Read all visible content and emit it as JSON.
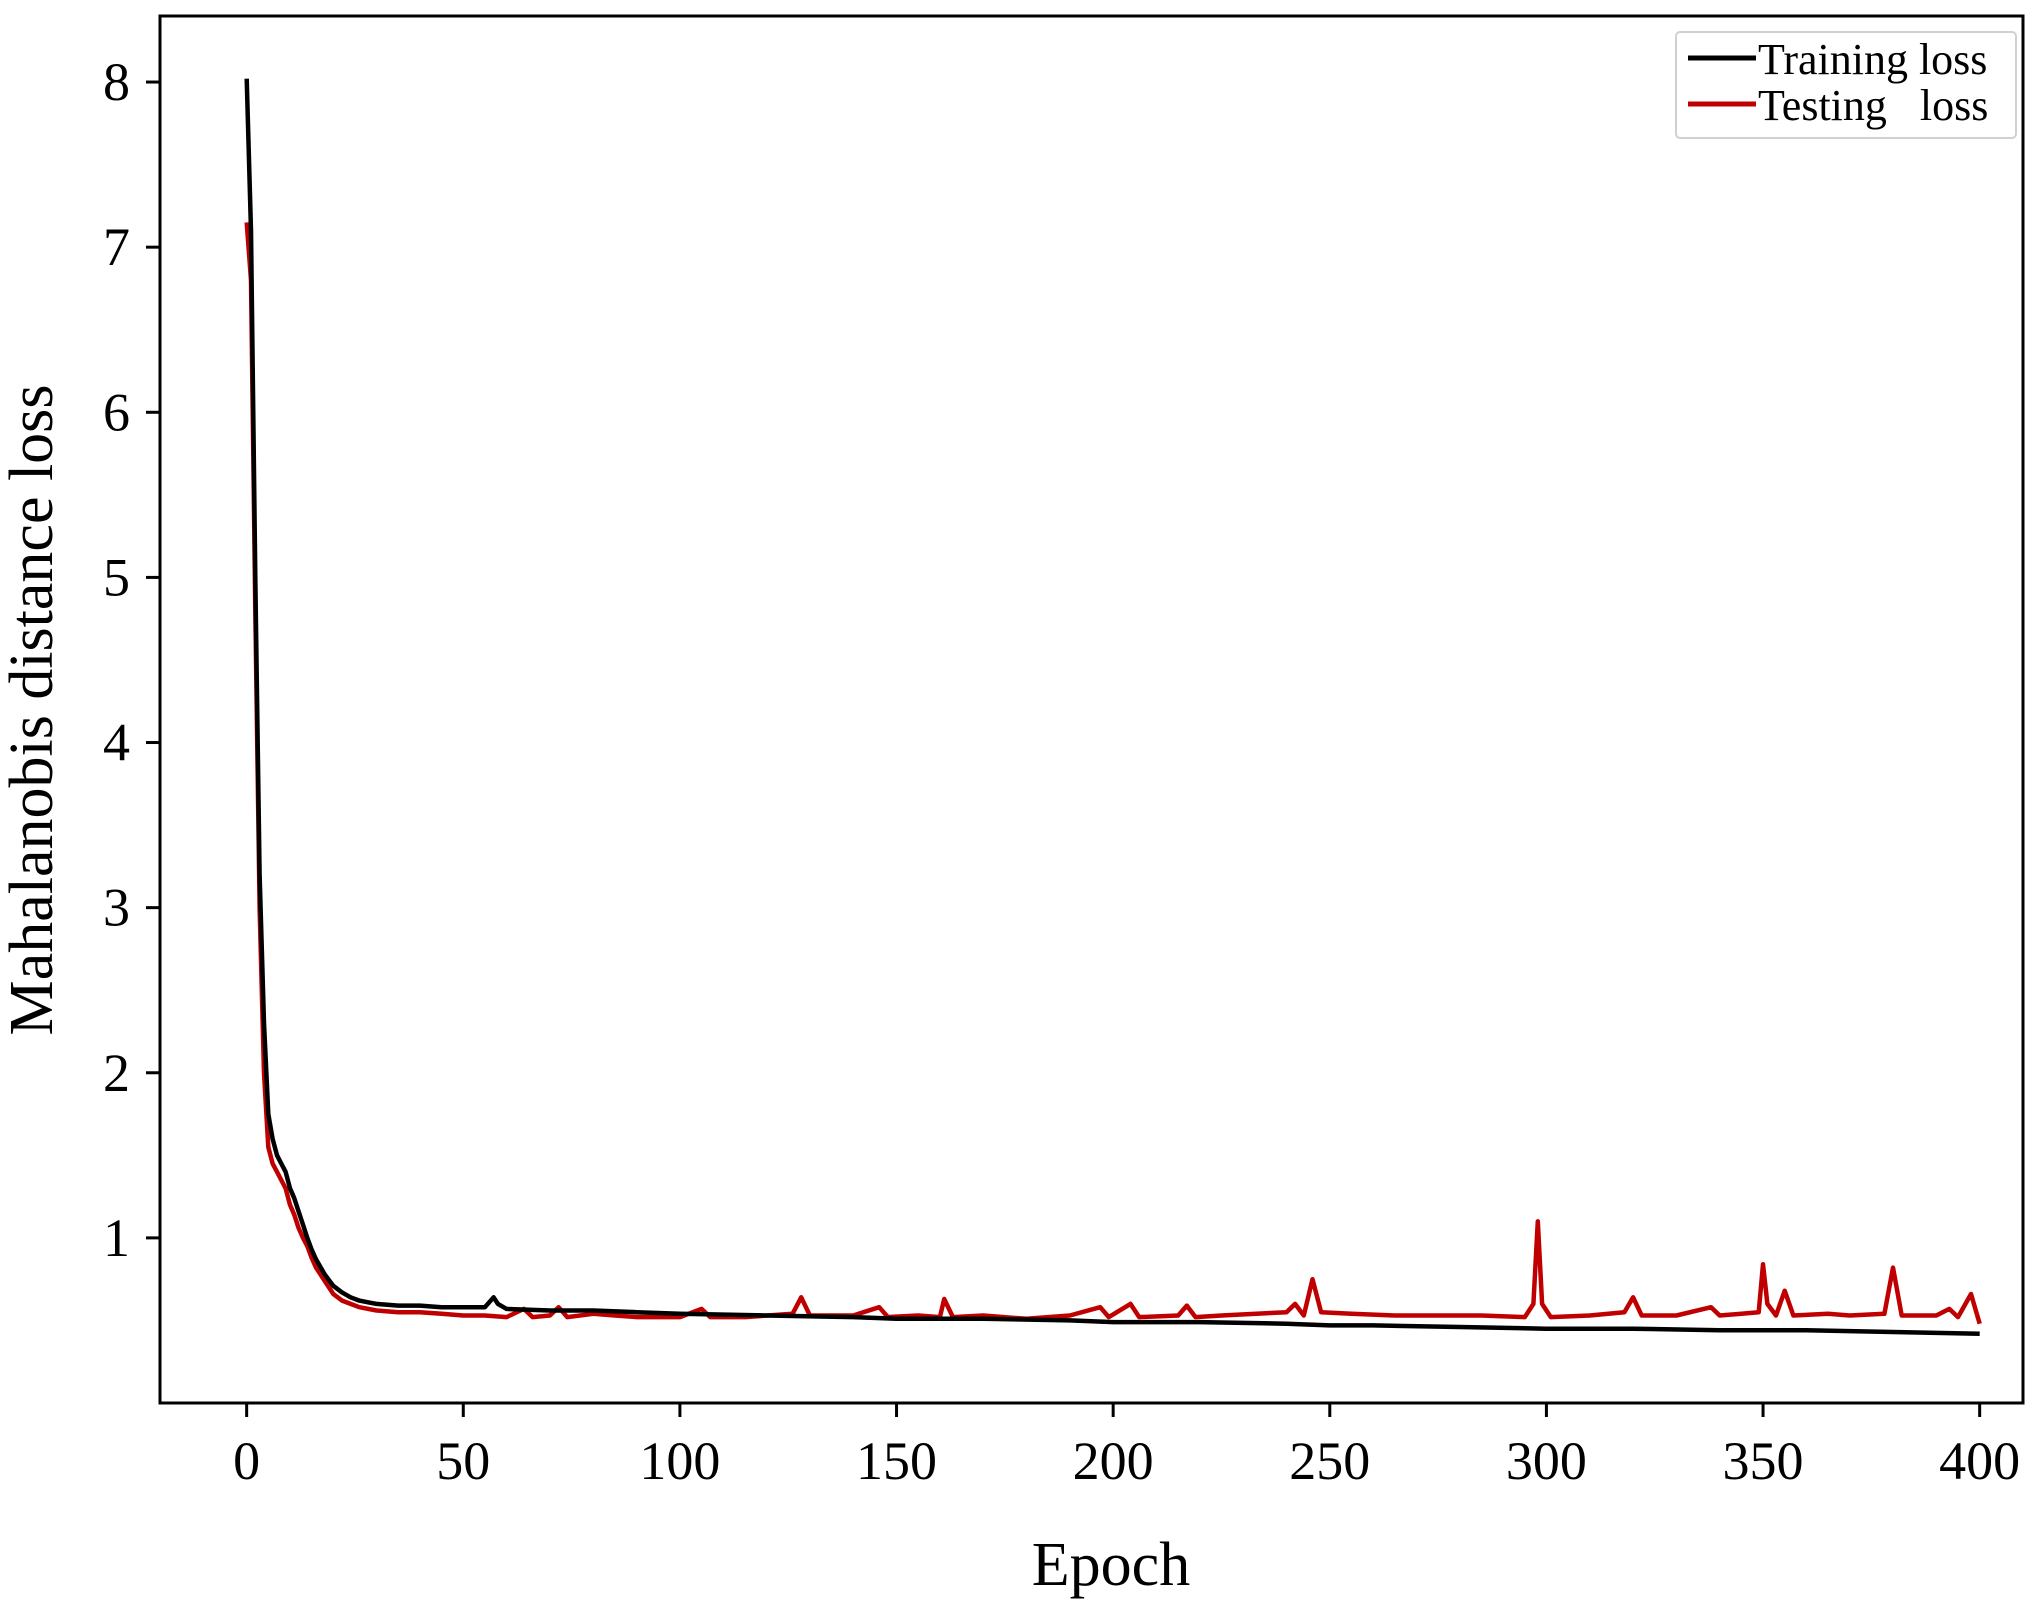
{
  "chart_data": {
    "type": "line",
    "title": "",
    "xlabel": "Epoch",
    "ylabel": "Mahalanobis distance loss",
    "xlim": [
      -20,
      410
    ],
    "ylim": [
      0.0,
      8.4
    ],
    "xticks": [
      0,
      50,
      100,
      150,
      200,
      250,
      300,
      350,
      400
    ],
    "yticks": [
      1,
      2,
      3,
      4,
      5,
      6,
      7,
      8
    ],
    "grid": false,
    "legend_position": "top-right",
    "series": [
      {
        "name": "Training loss",
        "color": "#000000",
        "points": [
          [
            0,
            8.02
          ],
          [
            1,
            7.1
          ],
          [
            2,
            5.0
          ],
          [
            3,
            3.2
          ],
          [
            4,
            2.3
          ],
          [
            5,
            1.75
          ],
          [
            6,
            1.6
          ],
          [
            7,
            1.5
          ],
          [
            8,
            1.45
          ],
          [
            9,
            1.4
          ],
          [
            10,
            1.3
          ],
          [
            11,
            1.24
          ],
          [
            12,
            1.16
          ],
          [
            13,
            1.08
          ],
          [
            14,
            1.0
          ],
          [
            15,
            0.93
          ],
          [
            16,
            0.87
          ],
          [
            18,
            0.78
          ],
          [
            20,
            0.71
          ],
          [
            22,
            0.67
          ],
          [
            24,
            0.64
          ],
          [
            26,
            0.62
          ],
          [
            28,
            0.61
          ],
          [
            30,
            0.6
          ],
          [
            35,
            0.59
          ],
          [
            40,
            0.59
          ],
          [
            45,
            0.58
          ],
          [
            50,
            0.58
          ],
          [
            55,
            0.58
          ],
          [
            57,
            0.64
          ],
          [
            58,
            0.6
          ],
          [
            60,
            0.57
          ],
          [
            70,
            0.56
          ],
          [
            80,
            0.56
          ],
          [
            90,
            0.55
          ],
          [
            100,
            0.54
          ],
          [
            120,
            0.53
          ],
          [
            140,
            0.52
          ],
          [
            150,
            0.51
          ],
          [
            170,
            0.51
          ],
          [
            190,
            0.5
          ],
          [
            200,
            0.49
          ],
          [
            220,
            0.49
          ],
          [
            240,
            0.48
          ],
          [
            250,
            0.47
          ],
          [
            260,
            0.47
          ],
          [
            280,
            0.46
          ],
          [
            300,
            0.45
          ],
          [
            320,
            0.45
          ],
          [
            340,
            0.44
          ],
          [
            360,
            0.44
          ],
          [
            380,
            0.43
          ],
          [
            400,
            0.42
          ]
        ]
      },
      {
        "name": "Testing   loss",
        "color": "#c00000",
        "points": [
          [
            0,
            7.15
          ],
          [
            1,
            6.8
          ],
          [
            2,
            4.8
          ],
          [
            3,
            3.0
          ],
          [
            4,
            2.0
          ],
          [
            5,
            1.55
          ],
          [
            6,
            1.45
          ],
          [
            7,
            1.4
          ],
          [
            8,
            1.35
          ],
          [
            9,
            1.3
          ],
          [
            10,
            1.2
          ],
          [
            11,
            1.14
          ],
          [
            12,
            1.06
          ],
          [
            13,
            1.0
          ],
          [
            14,
            0.95
          ],
          [
            15,
            0.88
          ],
          [
            16,
            0.82
          ],
          [
            18,
            0.74
          ],
          [
            20,
            0.66
          ],
          [
            22,
            0.62
          ],
          [
            24,
            0.6
          ],
          [
            26,
            0.58
          ],
          [
            30,
            0.56
          ],
          [
            35,
            0.55
          ],
          [
            40,
            0.55
          ],
          [
            45,
            0.54
          ],
          [
            50,
            0.53
          ],
          [
            55,
            0.53
          ],
          [
            60,
            0.52
          ],
          [
            64,
            0.57
          ],
          [
            66,
            0.52
          ],
          [
            70,
            0.53
          ],
          [
            72,
            0.58
          ],
          [
            74,
            0.52
          ],
          [
            80,
            0.54
          ],
          [
            85,
            0.53
          ],
          [
            90,
            0.52
          ],
          [
            100,
            0.52
          ],
          [
            105,
            0.57
          ],
          [
            107,
            0.52
          ],
          [
            115,
            0.52
          ],
          [
            126,
            0.54
          ],
          [
            128,
            0.64
          ],
          [
            130,
            0.53
          ],
          [
            140,
            0.53
          ],
          [
            146,
            0.58
          ],
          [
            148,
            0.52
          ],
          [
            155,
            0.53
          ],
          [
            160,
            0.52
          ],
          [
            161,
            0.63
          ],
          [
            163,
            0.52
          ],
          [
            170,
            0.53
          ],
          [
            180,
            0.51
          ],
          [
            190,
            0.53
          ],
          [
            197,
            0.58
          ],
          [
            199,
            0.52
          ],
          [
            204,
            0.6
          ],
          [
            206,
            0.52
          ],
          [
            215,
            0.53
          ],
          [
            217,
            0.59
          ],
          [
            219,
            0.52
          ],
          [
            225,
            0.53
          ],
          [
            240,
            0.55
          ],
          [
            242,
            0.6
          ],
          [
            244,
            0.53
          ],
          [
            246,
            0.75
          ],
          [
            248,
            0.55
          ],
          [
            255,
            0.54
          ],
          [
            265,
            0.53
          ],
          [
            275,
            0.53
          ],
          [
            285,
            0.53
          ],
          [
            295,
            0.52
          ],
          [
            297,
            0.6
          ],
          [
            298,
            1.1
          ],
          [
            299,
            0.6
          ],
          [
            301,
            0.52
          ],
          [
            310,
            0.53
          ],
          [
            318,
            0.55
          ],
          [
            320,
            0.64
          ],
          [
            322,
            0.53
          ],
          [
            330,
            0.53
          ],
          [
            338,
            0.58
          ],
          [
            340,
            0.53
          ],
          [
            345,
            0.54
          ],
          [
            349,
            0.55
          ],
          [
            350,
            0.84
          ],
          [
            351,
            0.6
          ],
          [
            353,
            0.53
          ],
          [
            355,
            0.68
          ],
          [
            357,
            0.53
          ],
          [
            365,
            0.54
          ],
          [
            370,
            0.53
          ],
          [
            378,
            0.54
          ],
          [
            380,
            0.82
          ],
          [
            382,
            0.53
          ],
          [
            390,
            0.53
          ],
          [
            393,
            0.57
          ],
          [
            395,
            0.52
          ],
          [
            398,
            0.66
          ],
          [
            400,
            0.48
          ]
        ]
      }
    ]
  }
}
